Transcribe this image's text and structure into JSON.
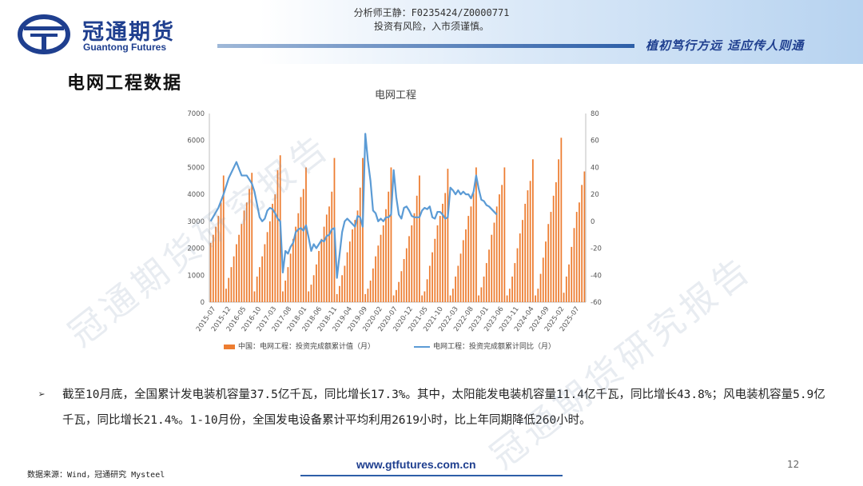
{
  "header": {
    "brand_cn": "冠通期货",
    "brand_en": "Guantong Futures",
    "analyst_line1": "分析师王静：F0235424/Z0000771",
    "analyst_line2": "投资有风险，入市须谨慎。",
    "slogan": "植初笃行方远  适应传人则通"
  },
  "section_title": "电网工程数据",
  "chart_data": {
    "type": "bar",
    "title": "电网工程",
    "x_ticks": [
      "2015-07",
      "2015-12",
      "2016-05",
      "2016-10",
      "2017-03",
      "2017-08",
      "2018-01",
      "2018-06",
      "2018-11",
      "2019-04",
      "2019-09",
      "2020-02",
      "2020-07",
      "2020-12",
      "2021-05",
      "2021-10",
      "2022-03",
      "2022-08",
      "2023-01",
      "2023-06",
      "2023-11",
      "2024-04",
      "2024-09",
      "2025-02",
      "2025-07"
    ],
    "y_left": {
      "min": 0,
      "max": 7000,
      "step": 1000,
      "ticks": [
        "0",
        "1000",
        "2000",
        "3000",
        "4000",
        "5000",
        "6000",
        "7000"
      ]
    },
    "y_right": {
      "min": -60,
      "max": 80,
      "step": 20,
      "ticks": [
        "-60",
        "-40",
        "-20",
        "0",
        "20",
        "40",
        "60",
        "80"
      ]
    },
    "series": [
      {
        "name": "中国：电网工程：投资完成额累计值（月）",
        "type": "bar",
        "color": "#ED7D31",
        "values": [
          2200,
          2500,
          2800,
          3200,
          3700,
          4700,
          500,
          900,
          1300,
          1700,
          2150,
          2500,
          2900,
          3400,
          3700,
          4200,
          4800,
          400,
          950,
          1300,
          1700,
          2150,
          2600,
          3000,
          3650,
          4000,
          4900,
          5450,
          400,
          800,
          1300,
          1800,
          2350,
          2800,
          3300,
          3900,
          4200,
          5000,
          400,
          650,
          1000,
          1400,
          1900,
          2350,
          2800,
          3250,
          3550,
          4100,
          5350,
          300,
          600,
          1000,
          1350,
          1850,
          2250,
          2700,
          3050,
          3400,
          4250,
          5350,
          300,
          500,
          800,
          1250,
          1700,
          2100,
          2500,
          2850,
          3450,
          4100,
          5000,
          250,
          450,
          750,
          1150,
          1600,
          2000,
          2450,
          2850,
          3300,
          3950,
          4700,
          250,
          400,
          850,
          1350,
          1850,
          2350,
          2850,
          3200,
          3650,
          4050,
          4950,
          250,
          500,
          950,
          1350,
          1800,
          2300,
          2700,
          3200,
          3550,
          4050,
          5000,
          250,
          550,
          950,
          1450,
          1950,
          2500,
          2950,
          3550,
          4000,
          4350,
          5000,
          250,
          500,
          950,
          1450,
          2000,
          2550,
          3050,
          3650,
          4150,
          4500,
          5300,
          250,
          500,
          1050,
          1650,
          2250,
          2900,
          3350,
          3950,
          4450,
          5300,
          6100,
          350,
          950,
          1400,
          2050,
          2750,
          3350,
          3700,
          4350,
          4850
        ]
      },
      {
        "name": "电网工程：投资完成额累计同比（月）",
        "type": "line",
        "color": "#5B9BD5",
        "points": [
          [
            0,
            0
          ],
          [
            3,
            10
          ],
          [
            5,
            20
          ],
          [
            7,
            32
          ],
          [
            9,
            40
          ],
          [
            10,
            44
          ],
          [
            11,
            39
          ],
          [
            12,
            34
          ],
          [
            14,
            34
          ],
          [
            16,
            28
          ],
          [
            17,
            22
          ],
          [
            19,
            3
          ],
          [
            20,
            0
          ],
          [
            21,
            2
          ],
          [
            22,
            8
          ],
          [
            23,
            10
          ],
          [
            24,
            9
          ],
          [
            25,
            6
          ],
          [
            26,
            2
          ],
          [
            27,
            0
          ],
          [
            28,
            -38
          ],
          [
            29,
            -22
          ],
          [
            30,
            -24
          ],
          [
            31,
            -19
          ],
          [
            32,
            -16
          ],
          [
            33,
            -8
          ],
          [
            34,
            -6
          ],
          [
            35,
            -5
          ],
          [
            36,
            -7
          ],
          [
            37,
            -3
          ],
          [
            38,
            -12
          ],
          [
            39,
            -22
          ],
          [
            40,
            -17
          ],
          [
            41,
            -20
          ],
          [
            42,
            -17
          ],
          [
            43,
            -14
          ],
          [
            44,
            -15
          ],
          [
            45,
            -11
          ],
          [
            46,
            -10
          ],
          [
            47,
            -6
          ],
          [
            48,
            -5
          ],
          [
            49,
            -42
          ],
          [
            50,
            -25
          ],
          [
            51,
            -8
          ],
          [
            52,
            0
          ],
          [
            53,
            2
          ],
          [
            54,
            0
          ],
          [
            55,
            -2
          ],
          [
            56,
            -4
          ],
          [
            57,
            4
          ],
          [
            58,
            3
          ],
          [
            59,
            -4
          ],
          [
            60,
            65
          ],
          [
            61,
            45
          ],
          [
            62,
            30
          ],
          [
            63,
            8
          ],
          [
            64,
            6
          ],
          [
            65,
            0
          ],
          [
            66,
            2
          ],
          [
            67,
            0
          ],
          [
            68,
            3
          ],
          [
            69,
            3
          ],
          [
            70,
            5
          ],
          [
            71,
            38
          ],
          [
            72,
            18
          ],
          [
            73,
            5
          ],
          [
            74,
            2
          ],
          [
            75,
            10
          ],
          [
            76,
            11
          ],
          [
            77,
            8
          ],
          [
            78,
            4
          ],
          [
            79,
            3
          ],
          [
            80,
            3
          ],
          [
            81,
            3
          ],
          [
            82,
            8
          ],
          [
            83,
            10
          ],
          [
            84,
            9
          ],
          [
            85,
            11
          ],
          [
            86,
            3
          ],
          [
            87,
            2
          ],
          [
            88,
            7
          ],
          [
            89,
            7
          ],
          [
            90,
            5
          ],
          [
            91,
            2
          ],
          [
            92,
            3
          ],
          [
            93,
            25
          ],
          [
            94,
            23
          ],
          [
            95,
            20
          ],
          [
            96,
            23
          ],
          [
            97,
            20
          ],
          [
            98,
            22
          ],
          [
            99,
            20
          ],
          [
            100,
            20
          ],
          [
            101,
            17
          ],
          [
            102,
            22
          ],
          [
            103,
            34
          ],
          [
            104,
            24
          ],
          [
            105,
            16
          ],
          [
            106,
            15
          ],
          [
            107,
            12
          ],
          [
            108,
            11
          ],
          [
            109,
            9
          ],
          [
            110,
            7
          ],
          [
            111,
            5
          ]
        ]
      }
    ]
  },
  "body_text": "截至10月底，全国累计发电装机容量37.5亿千瓦，同比增长17.3%。其中，太阳能发电装机容量11.4亿千瓦，同比增长43.8%；风电装机容量5.9亿千瓦，同比增长21.4%。1-10月份，全国发电设备累计平均利用2619小时，比上年同期降低260小时。",
  "bullet_symbol": "➢",
  "footer": {
    "source": "数据来源：Wind，冠通研究 Mysteel",
    "url": "www.gtfutures.com.cn",
    "page": "12"
  },
  "watermark": "冠通期货研究报告"
}
